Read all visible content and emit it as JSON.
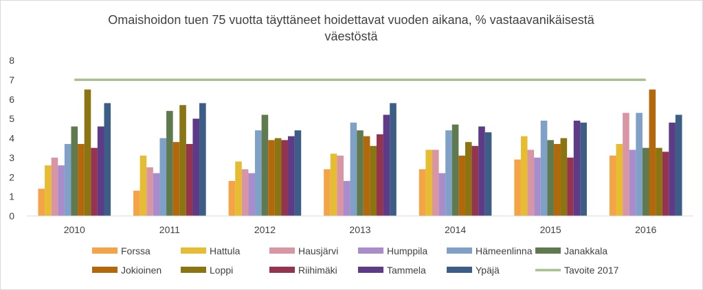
{
  "chart_data": {
    "type": "bar",
    "title_lines": [
      "Omaishoidon tuen 75 vuotta täyttäneet hoidettavat vuoden aikana, % vastaavanikäisestä",
      "väestöstä"
    ],
    "categories": [
      "2010",
      "2011",
      "2012",
      "2013",
      "2014",
      "2015",
      "2016"
    ],
    "ylim": [
      0,
      8
    ],
    "yticks": [
      "0",
      "1",
      "2",
      "3",
      "4",
      "5",
      "6",
      "7",
      "8"
    ],
    "grid": false,
    "legend_position": "bottom",
    "series": [
      {
        "name": "Forssa",
        "color": "#f4a446",
        "values": [
          1.4,
          1.3,
          1.8,
          2.4,
          2.4,
          2.9,
          3.1
        ]
      },
      {
        "name": "Hattula",
        "color": "#e6bd32",
        "values": [
          2.6,
          3.1,
          2.8,
          3.2,
          3.4,
          4.1,
          3.7
        ]
      },
      {
        "name": "Hausjärvi",
        "color": "#d895a3",
        "values": [
          3.0,
          2.5,
          2.4,
          3.1,
          3.4,
          3.4,
          5.3
        ]
      },
      {
        "name": "Humppila",
        "color": "#a98ccb",
        "values": [
          2.6,
          2.2,
          2.2,
          1.8,
          2.2,
          3.0,
          3.4
        ]
      },
      {
        "name": "Hämeenlinna",
        "color": "#7fa1c8",
        "values": [
          3.7,
          4.0,
          4.4,
          4.8,
          4.4,
          4.9,
          5.3
        ]
      },
      {
        "name": "Janakkala",
        "color": "#607a4f",
        "values": [
          4.6,
          5.4,
          5.2,
          4.4,
          4.7,
          3.9,
          3.5
        ]
      },
      {
        "name": "Jokioinen",
        "color": "#b3680c",
        "values": [
          3.7,
          3.8,
          3.9,
          4.1,
          3.1,
          3.7,
          6.5
        ]
      },
      {
        "name": "Loppi",
        "color": "#8a7512",
        "values": [
          6.5,
          5.7,
          4.0,
          3.6,
          3.8,
          4.0,
          3.5
        ]
      },
      {
        "name": "Riihimäki",
        "color": "#95344f",
        "values": [
          3.5,
          3.7,
          3.9,
          4.2,
          3.6,
          3.0,
          3.3
        ]
      },
      {
        "name": "Tammela",
        "color": "#5d3b86",
        "values": [
          4.6,
          5.0,
          4.1,
          5.2,
          4.6,
          4.9,
          4.8
        ]
      },
      {
        "name": "Ypäjä",
        "color": "#3c5d86",
        "values": [
          5.8,
          5.8,
          4.4,
          5.8,
          4.3,
          4.8,
          5.2
        ]
      }
    ],
    "target_line": {
      "name": "Tavoite 2017",
      "color": "#a7bf8f",
      "value": 7
    }
  }
}
